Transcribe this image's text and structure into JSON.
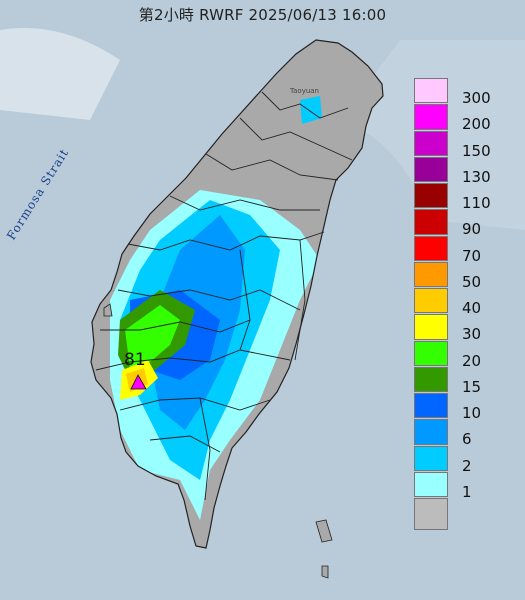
{
  "title": "第2小時  RWRF 2025/06/13 16:00",
  "legend": {
    "bins": [
      {
        "label": "300",
        "color": "#ffc9ff"
      },
      {
        "label": "200",
        "color": "#ff00ff"
      },
      {
        "label": "150",
        "color": "#cc00cc"
      },
      {
        "label": "130",
        "color": "#990099"
      },
      {
        "label": "110",
        "color": "#990000"
      },
      {
        "label": "90",
        "color": "#cc0000"
      },
      {
        "label": "70",
        "color": "#ff0000"
      },
      {
        "label": "50",
        "color": "#ff9900"
      },
      {
        "label": "40",
        "color": "#ffcc00"
      },
      {
        "label": "30",
        "color": "#ffff00"
      },
      {
        "label": "20",
        "color": "#33ff00"
      },
      {
        "label": "15",
        "color": "#339900"
      },
      {
        "label": "10",
        "color": "#0066ff"
      },
      {
        "label": "6",
        "color": "#0099ff"
      },
      {
        "label": "2",
        "color": "#00ccff"
      },
      {
        "label": "1",
        "color": "#99ffff"
      }
    ],
    "bottom_color": "#bcbcbc"
  },
  "labels": {
    "strait": "Formosa Strait",
    "city": "Taoyuan"
  },
  "max_marker": {
    "value": "81",
    "icon": "triangle-icon",
    "color": "#ff00ff"
  },
  "colors": {
    "sea": "#b9cbd9",
    "land_dry": "#a9a9a9",
    "boundary": "#222222"
  }
}
